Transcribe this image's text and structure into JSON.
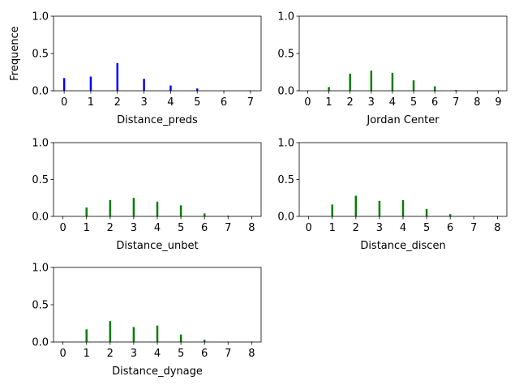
{
  "chart_data": [
    {
      "type": "bar",
      "xlabel": "Distance_preds",
      "ylabel": "Frequence",
      "ylim": [
        0,
        1.0
      ],
      "yticks": [
        "0.0",
        "0.5",
        "1.0"
      ],
      "color": "#0000ff",
      "categories": [
        "0",
        "1",
        "2",
        "3",
        "4",
        "5",
        "6",
        "7"
      ],
      "values": [
        0.17,
        0.19,
        0.37,
        0.16,
        0.07,
        0.03,
        0.005,
        0.005
      ]
    },
    {
      "type": "bar",
      "xlabel": "Jordan Center",
      "ylabel": "",
      "ylim": [
        0,
        1.0
      ],
      "yticks": [
        "0.0",
        "0.5",
        "1.0"
      ],
      "color": "#008000",
      "categories": [
        "0",
        "1",
        "2",
        "3",
        "4",
        "5",
        "6",
        "7",
        "8",
        "9"
      ],
      "values": [
        0.005,
        0.05,
        0.23,
        0.27,
        0.24,
        0.14,
        0.06,
        0.01,
        0.005,
        0.005
      ]
    },
    {
      "type": "bar",
      "xlabel": "Distance_unbet",
      "ylabel": "",
      "ylim": [
        0,
        1.0
      ],
      "yticks": [
        "0.0",
        "0.5",
        "1.0"
      ],
      "color": "#008000",
      "categories": [
        "0",
        "1",
        "2",
        "3",
        "4",
        "5",
        "6",
        "7",
        "8"
      ],
      "values": [
        0.005,
        0.12,
        0.22,
        0.25,
        0.2,
        0.15,
        0.04,
        0.01,
        0.005
      ]
    },
    {
      "type": "bar",
      "xlabel": "Distance_discen",
      "ylabel": "",
      "ylim": [
        0,
        1.0
      ],
      "yticks": [
        "0.0",
        "0.5",
        "1.0"
      ],
      "color": "#008000",
      "categories": [
        "0",
        "1",
        "2",
        "3",
        "4",
        "5",
        "6",
        "7",
        "8"
      ],
      "values": [
        0.005,
        0.16,
        0.28,
        0.21,
        0.22,
        0.1,
        0.03,
        0.005,
        0.005
      ]
    },
    {
      "type": "bar",
      "xlabel": "Distance_dynage",
      "ylabel": "",
      "ylim": [
        0,
        1.0
      ],
      "yticks": [
        "0.0",
        "0.5",
        "1.0"
      ],
      "color": "#008000",
      "categories": [
        "0",
        "1",
        "2",
        "3",
        "4",
        "5",
        "6",
        "7",
        "8"
      ],
      "values": [
        0.005,
        0.17,
        0.28,
        0.2,
        0.22,
        0.1,
        0.03,
        0.005,
        0.005
      ]
    }
  ]
}
